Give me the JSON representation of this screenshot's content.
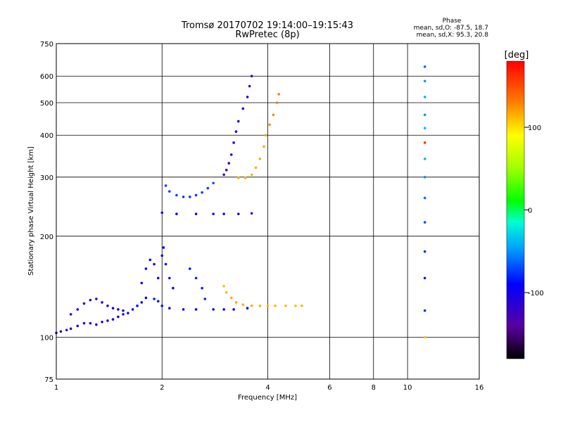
{
  "chart_data": {
    "type": "scatter",
    "title": "Tromsø 20170702 19:14:00–19:15:43",
    "subtitle": "RwPretec (8p)",
    "stats": {
      "header": "Phase",
      "line1": "mean, sd,O: -87.5, 18.7",
      "line2": "mean, sd,X:  95.3, 20.8"
    },
    "xlabel": "Frequency [MHz]",
    "ylabel": "Stationary phase Virtual Height [km]",
    "xscale": "log",
    "yscale": "log",
    "xlim": [
      1,
      16
    ],
    "ylim": [
      75,
      750
    ],
    "xticks": [
      1,
      2,
      4,
      6,
      8,
      10,
      16
    ],
    "yticks": [
      75,
      100,
      200,
      300,
      400,
      500,
      600,
      750
    ],
    "xgrid": [
      2,
      4,
      6,
      8,
      10
    ],
    "ygrid": [
      100,
      200,
      300,
      400,
      500,
      600
    ],
    "grid": true,
    "colorbar": {
      "label": "[deg]",
      "range": [
        -180,
        180
      ],
      "ticks": [
        100,
        0,
        -100
      ],
      "colormap": "rainbow"
    },
    "series": [
      {
        "comment_free": true,
        "points": [
          [
            1.0,
            103,
            -110
          ],
          [
            1.03,
            104,
            -110
          ],
          [
            1.07,
            105,
            -115
          ],
          [
            1.1,
            106,
            -112
          ],
          [
            1.15,
            108,
            -110
          ],
          [
            1.2,
            110,
            -108
          ],
          [
            1.25,
            110,
            -108
          ],
          [
            1.3,
            109,
            -105
          ],
          [
            1.35,
            111,
            -108
          ],
          [
            1.4,
            112,
            -110
          ],
          [
            1.45,
            113,
            -108
          ],
          [
            1.5,
            115,
            -105
          ],
          [
            1.55,
            117,
            -102
          ],
          [
            1.6,
            118,
            -100
          ],
          [
            1.65,
            121,
            -98
          ],
          [
            1.7,
            124,
            -96
          ],
          [
            1.75,
            127,
            -95
          ],
          [
            1.8,
            131,
            -92
          ]
        ]
      },
      {
        "points": [
          [
            1.1,
            117,
            -108
          ],
          [
            1.15,
            121,
            -110
          ],
          [
            1.2,
            126,
            -110
          ],
          [
            1.25,
            129,
            -108
          ],
          [
            1.3,
            130,
            -110
          ],
          [
            1.35,
            127,
            -108
          ],
          [
            1.4,
            124,
            -105
          ],
          [
            1.45,
            122,
            -105
          ],
          [
            1.5,
            121,
            -103
          ],
          [
            1.55,
            120,
            -100
          ]
        ]
      },
      {
        "points": [
          [
            1.9,
            130,
            -85
          ],
          [
            1.95,
            128,
            -85
          ],
          [
            2.0,
            124,
            -87
          ],
          [
            2.1,
            122,
            -88
          ],
          [
            2.3,
            121,
            -90
          ],
          [
            2.5,
            121,
            -92
          ],
          [
            2.8,
            121,
            -94
          ],
          [
            3.0,
            121,
            -96
          ],
          [
            3.2,
            121,
            -98
          ],
          [
            3.5,
            122,
            -100
          ]
        ]
      },
      {
        "points": [
          [
            3.0,
            142,
            110
          ],
          [
            3.05,
            136,
            112
          ],
          [
            3.15,
            131,
            115
          ],
          [
            3.25,
            127,
            118
          ],
          [
            3.4,
            125,
            118
          ],
          [
            3.6,
            124,
            116
          ],
          [
            3.8,
            124,
            114
          ],
          [
            4.0,
            124,
            113
          ],
          [
            4.2,
            124,
            112
          ],
          [
            4.5,
            124,
            112
          ],
          [
            4.8,
            124,
            112
          ],
          [
            5.0,
            124,
            112
          ]
        ]
      },
      {
        "points": [
          [
            1.75,
            145,
            -98
          ],
          [
            1.8,
            160,
            -97
          ],
          [
            1.85,
            170,
            -96
          ],
          [
            1.9,
            165,
            -97
          ],
          [
            1.95,
            150,
            -95
          ],
          [
            2.0,
            175,
            -93
          ],
          [
            2.02,
            185,
            -92
          ],
          [
            2.05,
            165,
            -90
          ],
          [
            2.1,
            150,
            -88
          ],
          [
            2.15,
            140,
            -88
          ],
          [
            2.4,
            160,
            -85
          ],
          [
            2.5,
            150,
            -83
          ],
          [
            2.6,
            140,
            -82
          ],
          [
            2.65,
            130,
            -82
          ]
        ]
      },
      {
        "points": [
          [
            2.05,
            283,
            -72
          ],
          [
            2.1,
            272,
            -72
          ],
          [
            2.2,
            265,
            -74
          ],
          [
            2.3,
            262,
            -76
          ],
          [
            2.4,
            262,
            -78
          ],
          [
            2.5,
            265,
            -76
          ],
          [
            2.6,
            270,
            -74
          ],
          [
            2.7,
            278,
            -72
          ],
          [
            2.8,
            288,
            -70
          ]
        ]
      },
      {
        "points": [
          [
            2.0,
            235,
            -95
          ],
          [
            2.2,
            233,
            -95
          ],
          [
            2.5,
            233,
            -100
          ],
          [
            2.8,
            233,
            -105
          ],
          [
            3.0,
            233,
            -110
          ],
          [
            3.3,
            233,
            -115
          ],
          [
            3.6,
            234,
            -118
          ]
        ]
      },
      {
        "points": [
          [
            3.0,
            305,
            -120
          ],
          [
            3.05,
            315,
            -118
          ],
          [
            3.1,
            330,
            -116
          ],
          [
            3.15,
            350,
            -114
          ],
          [
            3.2,
            380,
            -112
          ],
          [
            3.25,
            410,
            -110
          ],
          [
            3.3,
            440,
            -110
          ],
          [
            3.4,
            480,
            -112
          ],
          [
            3.5,
            520,
            -114
          ],
          [
            3.55,
            560,
            -116
          ],
          [
            3.6,
            600,
            -120
          ]
        ]
      },
      {
        "points": [
          [
            3.3,
            298,
            112
          ],
          [
            3.45,
            298,
            112
          ],
          [
            3.6,
            305,
            114
          ],
          [
            3.7,
            320,
            115
          ],
          [
            3.8,
            340,
            116
          ],
          [
            3.9,
            370,
            118
          ],
          [
            3.95,
            400,
            120
          ],
          [
            4.05,
            430,
            124
          ],
          [
            4.15,
            460,
            128
          ],
          [
            4.25,
            500,
            130
          ],
          [
            4.3,
            530,
            132
          ]
        ]
      },
      {
        "points": [
          [
            11.2,
            100,
            110
          ],
          [
            11.2,
            120,
            -80
          ],
          [
            11.2,
            150,
            -85
          ],
          [
            11.2,
            180,
            -80
          ],
          [
            11.2,
            220,
            -70
          ],
          [
            11.2,
            260,
            -60
          ],
          [
            11.2,
            300,
            -50
          ],
          [
            11.2,
            340,
            -40
          ],
          [
            11.2,
            380,
            160
          ],
          [
            11.2,
            420,
            -40
          ],
          [
            11.2,
            460,
            -50
          ],
          [
            11.2,
            520,
            -40
          ],
          [
            11.2,
            580,
            -50
          ],
          [
            11.2,
            640,
            -60
          ]
        ]
      }
    ]
  }
}
